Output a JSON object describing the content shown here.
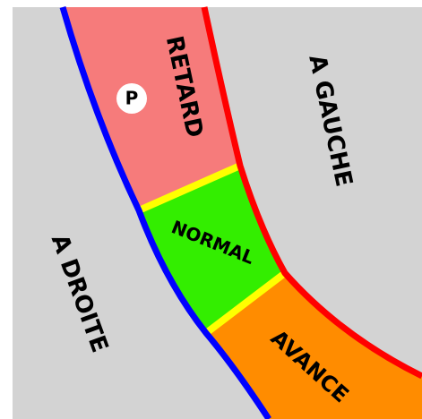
{
  "zones": {
    "retard": "RETARD",
    "normal": "NORMAL",
    "avance": "AVANCE"
  },
  "sides": {
    "gauche": "A GAUCHE",
    "droite": "A DROITE"
  },
  "marker": "P"
}
